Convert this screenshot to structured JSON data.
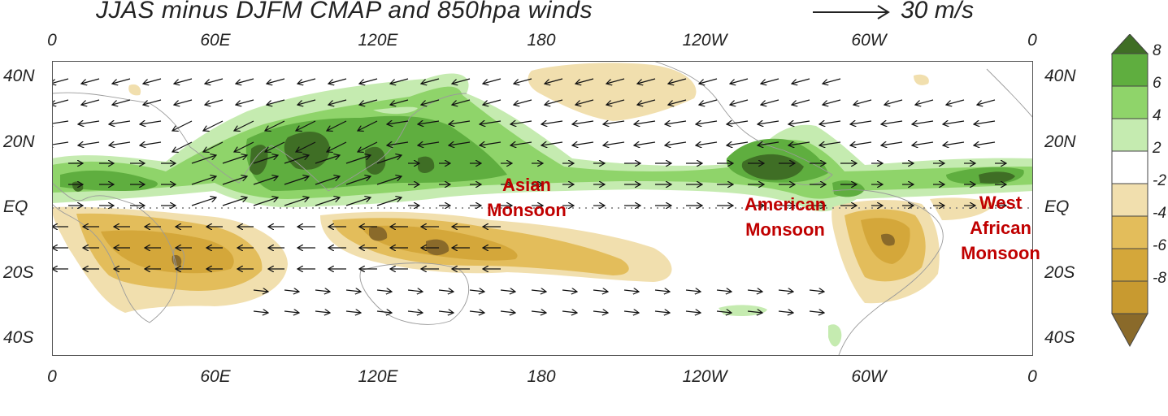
{
  "title": "JJAS minus DJFM CMAP and 850hpa winds",
  "reference_vector": {
    "label": "30 m/s",
    "icon": "arrow-right-icon"
  },
  "axes": {
    "lon_ticks_top": [
      "0",
      "60E",
      "120E",
      "180",
      "120W",
      "60W",
      "0"
    ],
    "lon_ticks_bottom": [
      "0",
      "60E",
      "120E",
      "180",
      "120W",
      "60W",
      "0"
    ],
    "lat_ticks_left": [
      "40N",
      "20N",
      "EQ",
      "20S",
      "40S"
    ],
    "lat_ticks_right": [
      "40N",
      "20N",
      "EQ",
      "20S",
      "40S"
    ]
  },
  "regions": [
    {
      "lines": [
        "Asian",
        "Monsoon"
      ]
    },
    {
      "lines": [
        "American",
        "Monsoon"
      ]
    },
    {
      "lines": [
        "West",
        "African",
        "Monsoon"
      ]
    }
  ],
  "colorbar": {
    "labels": [
      "8",
      "6",
      "4",
      "2",
      "-2",
      "-4",
      "-6",
      "-8"
    ],
    "colors": [
      "#3f6e25",
      "#5fae3f",
      "#8fd46a",
      "#c5ebb0",
      "#ffffff",
      "#f1dfae",
      "#e3bd5b",
      "#d4a73a",
      "#8a6a2a"
    ]
  },
  "colors": {
    "wet_strong": "#3f6e25",
    "wet_mid": "#5fae3f",
    "wet_light": "#8fd46a",
    "wet_pale": "#c5ebb0",
    "dry_pale": "#f1dfae",
    "dry_light": "#e3bd5b",
    "dry_mid": "#d4a73a",
    "dry_strong": "#8a6a2a",
    "label_red": "#c00000"
  }
}
